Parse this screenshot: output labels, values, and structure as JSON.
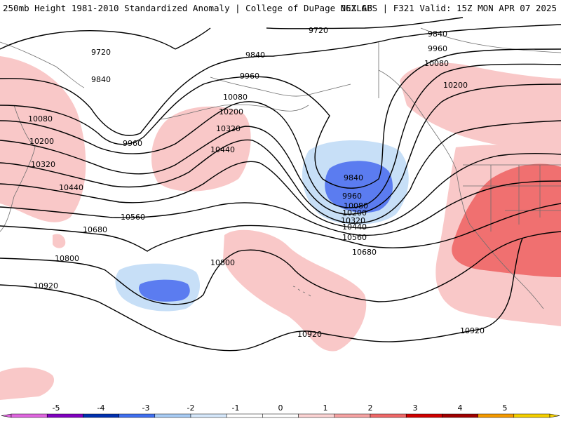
{
  "header": {
    "left_title": "250mb Height 1981-2010 Standardized Anomaly | College of DuPage NEXLAB",
    "right_title": "06Z GFS | F321 Valid: 15Z MON APR 07 2025"
  },
  "contour_labels": [
    "9720",
    "9720",
    "9840",
    "9840",
    "9840",
    "9840",
    "9960",
    "9960",
    "9960",
    "9960",
    "10080",
    "10080",
    "10080",
    "10080",
    "10200",
    "10200",
    "10200",
    "10200",
    "10320",
    "10320",
    "10320",
    "10440",
    "10440",
    "10440",
    "10560",
    "10560",
    "10680",
    "10680",
    "10800",
    "10800",
    "10920",
    "10920",
    "10920"
  ],
  "legend": {
    "ticks": [
      "-5",
      "-4",
      "-3",
      "-2",
      "-1",
      "0",
      "1",
      "2",
      "3",
      "4",
      "5"
    ],
    "colors": [
      "#e066e0",
      "#8000c0",
      "#0030b0",
      "#3f6ff0",
      "#a8ccf5",
      "#d6e8fb",
      "#ffffff",
      "#ffffff",
      "#fcd4d4",
      "#f7a3a3",
      "#f06868",
      "#d00000",
      "#a00000",
      "#f59a00",
      "#f5d000"
    ]
  },
  "anomaly_colors": {
    "light_blue": "#c7dff7",
    "medium_blue": "#5b7cf0",
    "light_red": "#f9c8c8",
    "medium_red": "#f07070"
  }
}
